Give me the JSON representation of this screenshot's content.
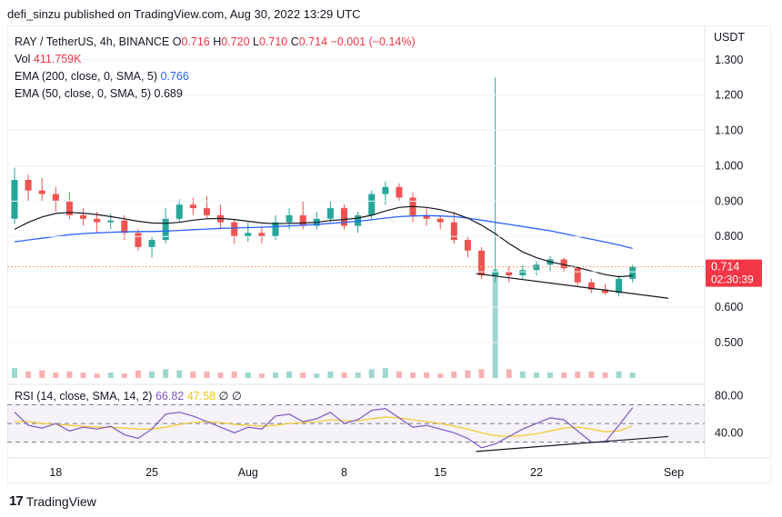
{
  "header": {
    "published": "defi_sinzu published on TradingView.com, Aug 30, 2022 13:29 UTC"
  },
  "legend": {
    "symbol": "RAY / TetherUS, 4h, BINANCE",
    "open_label": "O",
    "open": "0.716",
    "high_label": "H",
    "high": "0.720",
    "low_label": "L",
    "low": "0.710",
    "close_label": "C",
    "close": "0.714",
    "change": "−0.001 (−0.14%)",
    "vol_label": "Vol",
    "vol": "411.759K",
    "ema200_label": "EMA (200, close, 0, SMA, 5)",
    "ema200": "0.766",
    "ema50_label": "EMA (50, close, 0, SMA, 5)",
    "ema50": "0.689"
  },
  "rsi_legend": {
    "label": "RSI (14, close, SMA, 14, 2)",
    "rsi": "66.82",
    "sma": "47.58",
    "extra": "∅ ∅"
  },
  "price_axis": {
    "currency": "USDT",
    "ticks": [
      "1.300",
      "1.200",
      "1.100",
      "1.000",
      "0.900",
      "0.800",
      "0.700",
      "0.600",
      "0.500"
    ]
  },
  "rsi_axis": {
    "ticks": [
      "80.00",
      "40.00"
    ]
  },
  "price_label": {
    "value": "0.714",
    "countdown": "02:30:39"
  },
  "time_axis": {
    "ticks": [
      "18",
      "25",
      "Aug",
      "8",
      "15",
      "22",
      "Sep"
    ]
  },
  "footer": {
    "brand": "TradingView"
  },
  "colors": {
    "up": "#26a69a",
    "down": "#ef5350",
    "ema200": "#2962ff",
    "ema50": "#131722",
    "rsi": "#7e57c2",
    "rsi_sma": "#f5c518",
    "price_line": "#f7a474"
  },
  "chart_data": {
    "type": "candlestick",
    "ylim": [
      0.42,
      1.32
    ],
    "x_start": "2022-07-15",
    "x_end": "2022-09-01",
    "ohlc_daily": [
      [
        0.85,
        0.995,
        0.835,
        0.96
      ],
      [
        0.96,
        0.975,
        0.9,
        0.93
      ],
      [
        0.93,
        0.965,
        0.9,
        0.92
      ],
      [
        0.92,
        0.94,
        0.87,
        0.9
      ],
      [
        0.9,
        0.925,
        0.85,
        0.86
      ],
      [
        0.86,
        0.88,
        0.83,
        0.85
      ],
      [
        0.85,
        0.87,
        0.81,
        0.84
      ],
      [
        0.84,
        0.865,
        0.82,
        0.845
      ],
      [
        0.845,
        0.86,
        0.79,
        0.81
      ],
      [
        0.81,
        0.82,
        0.76,
        0.77
      ],
      [
        0.77,
        0.8,
        0.74,
        0.79
      ],
      [
        0.79,
        0.88,
        0.78,
        0.85
      ],
      [
        0.85,
        0.905,
        0.84,
        0.89
      ],
      [
        0.89,
        0.91,
        0.86,
        0.88
      ],
      [
        0.88,
        0.915,
        0.85,
        0.86
      ],
      [
        0.86,
        0.89,
        0.82,
        0.84
      ],
      [
        0.84,
        0.85,
        0.78,
        0.8
      ],
      [
        0.8,
        0.84,
        0.785,
        0.81
      ],
      [
        0.81,
        0.83,
        0.78,
        0.8
      ],
      [
        0.8,
        0.86,
        0.79,
        0.84
      ],
      [
        0.84,
        0.88,
        0.82,
        0.86
      ],
      [
        0.86,
        0.9,
        0.82,
        0.83
      ],
      [
        0.83,
        0.87,
        0.82,
        0.85
      ],
      [
        0.85,
        0.9,
        0.84,
        0.88
      ],
      [
        0.88,
        0.89,
        0.82,
        0.83
      ],
      [
        0.83,
        0.87,
        0.81,
        0.86
      ],
      [
        0.86,
        0.93,
        0.85,
        0.92
      ],
      [
        0.92,
        0.955,
        0.89,
        0.94
      ],
      [
        0.94,
        0.95,
        0.9,
        0.91
      ],
      [
        0.91,
        0.925,
        0.84,
        0.86
      ],
      [
        0.86,
        0.88,
        0.83,
        0.85
      ],
      [
        0.85,
        0.86,
        0.82,
        0.84
      ],
      [
        0.84,
        0.87,
        0.78,
        0.79
      ],
      [
        0.79,
        0.8,
        0.74,
        0.76
      ],
      [
        0.76,
        0.77,
        0.68,
        0.69
      ],
      [
        0.69,
        1.25,
        0.67,
        0.7
      ],
      [
        0.7,
        0.715,
        0.67,
        0.69
      ],
      [
        0.69,
        0.72,
        0.68,
        0.705
      ],
      [
        0.705,
        0.73,
        0.69,
        0.72
      ],
      [
        0.72,
        0.745,
        0.7,
        0.735
      ],
      [
        0.735,
        0.74,
        0.7,
        0.71
      ],
      [
        0.71,
        0.715,
        0.66,
        0.67
      ],
      [
        0.67,
        0.68,
        0.64,
        0.65
      ],
      [
        0.65,
        0.665,
        0.635,
        0.64
      ],
      [
        0.64,
        0.69,
        0.63,
        0.68
      ],
      [
        0.68,
        0.72,
        0.67,
        0.714
      ]
    ],
    "ema200": [
      0.785,
      0.79,
      0.795,
      0.8,
      0.805,
      0.808,
      0.81,
      0.812,
      0.813,
      0.814,
      0.814,
      0.815,
      0.817,
      0.819,
      0.821,
      0.823,
      0.824,
      0.825,
      0.826,
      0.828,
      0.83,
      0.832,
      0.834,
      0.837,
      0.84,
      0.843,
      0.847,
      0.852,
      0.856,
      0.858,
      0.859,
      0.858,
      0.856,
      0.852,
      0.846,
      0.84,
      0.834,
      0.828,
      0.822,
      0.816,
      0.808,
      0.8,
      0.792,
      0.784,
      0.776,
      0.766
    ],
    "ema50": [
      0.82,
      0.84,
      0.855,
      0.865,
      0.868,
      0.866,
      0.862,
      0.856,
      0.85,
      0.843,
      0.838,
      0.837,
      0.84,
      0.846,
      0.85,
      0.851,
      0.848,
      0.843,
      0.838,
      0.836,
      0.837,
      0.838,
      0.84,
      0.845,
      0.848,
      0.852,
      0.86,
      0.872,
      0.882,
      0.885,
      0.882,
      0.876,
      0.866,
      0.852,
      0.832,
      0.808,
      0.78,
      0.756,
      0.74,
      0.728,
      0.72,
      0.712,
      0.702,
      0.692,
      0.686,
      0.689
    ],
    "volume": [
      0.9,
      0.6,
      0.7,
      0.5,
      0.6,
      0.5,
      0.4,
      0.5,
      0.4,
      0.7,
      0.6,
      0.8,
      0.7,
      0.6,
      0.6,
      0.5,
      0.6,
      0.5,
      0.4,
      0.5,
      0.6,
      0.5,
      0.4,
      0.6,
      0.5,
      0.5,
      0.8,
      0.9,
      0.6,
      0.5,
      0.5,
      0.4,
      0.6,
      0.7,
      0.8,
      10.0,
      0.8,
      0.6,
      0.5,
      0.5,
      0.5,
      0.6,
      0.6,
      0.5,
      0.6,
      0.5
    ],
    "rsi": [
      62,
      48,
      45,
      50,
      42,
      46,
      44,
      47,
      38,
      34,
      44,
      60,
      62,
      58,
      52,
      46,
      40,
      46,
      44,
      58,
      60,
      52,
      55,
      62,
      50,
      54,
      64,
      66,
      56,
      46,
      48,
      44,
      40,
      34,
      24,
      28,
      36,
      44,
      50,
      56,
      54,
      42,
      30,
      30,
      48,
      66.82
    ],
    "rsi_sma": [
      52,
      52,
      50,
      49,
      48,
      47,
      46,
      46,
      45,
      44,
      44,
      46,
      49,
      51,
      52,
      51,
      49,
      48,
      47,
      48,
      50,
      51,
      52,
      54,
      53,
      53,
      55,
      57,
      56,
      54,
      52,
      50,
      47,
      44,
      40,
      37,
      36,
      37,
      39,
      42,
      45,
      46,
      44,
      41,
      42,
      47.58
    ],
    "support_line": {
      "from": [
        "2022-08-18",
        0.695
      ],
      "to": [
        "2022-09-01",
        0.625
      ]
    },
    "rsi_trend_line": {
      "from": [
        "2022-08-18",
        20
      ],
      "to": [
        "2022-09-01",
        36
      ]
    },
    "rsi_levels": [
      70,
      50,
      30
    ]
  }
}
